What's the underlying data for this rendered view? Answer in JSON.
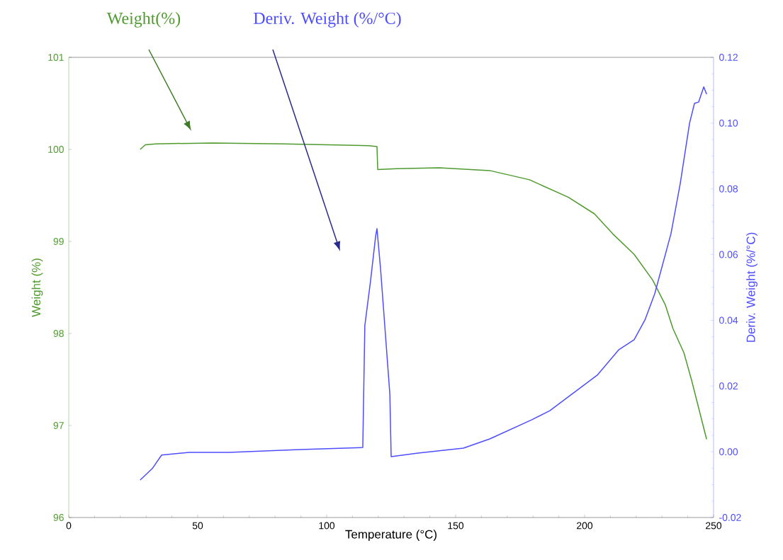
{
  "chart_data": {
    "type": "line",
    "xlabel": "Temperature (°C)",
    "ylabel": "Weight (%)",
    "y2label": "Deriv. Weight (%/°C)",
    "xlim": [
      0,
      250
    ],
    "xticks": [
      0,
      50,
      100,
      150,
      200,
      250
    ],
    "ylim": [
      96,
      101
    ],
    "yticks": [
      96,
      97,
      98,
      99,
      100,
      101
    ],
    "y2lim": [
      -0.02,
      0.12
    ],
    "y2ticks": [
      -0.02,
      {
        "value": 0.0,
        "label": "0.00"
      },
      0.02,
      0.04,
      0.06,
      0.08,
      {
        "value": 0.1,
        "label": "0.10"
      },
      0.12
    ],
    "series": [
      {
        "name": "Weight(%)",
        "color": "#4e9a2e",
        "x": [
          27.7,
          29.7,
          33.8,
          55.8,
          83.2,
          116.2,
          119.5,
          119.8,
          127.2,
          143.7,
          163.2,
          178.6,
          193.7,
          203.8,
          211.0,
          219.2,
          226.4,
          231.3,
          234.3,
          238.5,
          241.5,
          247.3
        ],
        "values": [
          100.0,
          100.05,
          100.06,
          100.07,
          100.06,
          100.04,
          100.03,
          99.78,
          99.79,
          99.8,
          99.77,
          99.67,
          99.48,
          99.3,
          99.08,
          98.86,
          98.58,
          98.31,
          98.05,
          97.79,
          97.49,
          96.85
        ]
      },
      {
        "name": "Deriv. Weight (%/°C)",
        "color": "#4d4dff",
        "axis": "y2",
        "x": [
          27.7,
          32.4,
          36.0,
          46.7,
          62.1,
          89.6,
          114.0,
          114.8,
          117.0,
          119.0,
          119.5,
          120.9,
          124.5,
          125.0,
          135.4,
          153.0,
          163.2,
          179.4,
          186.5,
          204.9,
          213.2,
          219.2,
          223.4,
          227.2,
          233.5,
          237.1,
          240.7,
          242.6,
          244.2,
          246.2,
          247.3
        ],
        "values": [
          -0.0086,
          -0.0051,
          -0.001,
          -0.0002,
          -0.0002,
          0.0007,
          0.0013,
          0.0384,
          0.0519,
          0.0657,
          0.0679,
          0.0556,
          0.0175,
          -0.0015,
          -0.0004,
          0.0011,
          0.0039,
          0.0097,
          0.0125,
          0.0233,
          0.031,
          0.0341,
          0.0401,
          0.0481,
          0.0664,
          0.0817,
          0.1,
          0.106,
          0.1064,
          0.111,
          0.1088
        ]
      }
    ]
  }
}
